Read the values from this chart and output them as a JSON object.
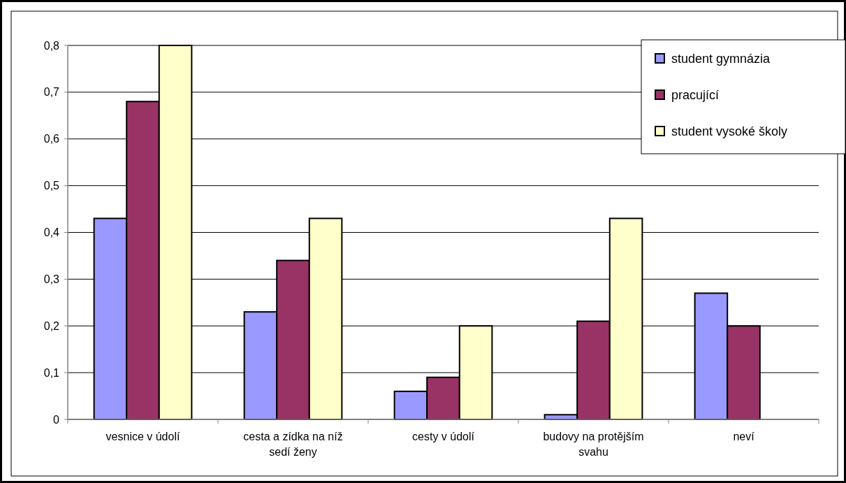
{
  "chart_data": {
    "type": "bar",
    "categories": [
      "vesnice v údolí",
      "cesta a zídka na níž sedí ženy",
      "cesty v údolí",
      "budovy na protějším svahu",
      "neví"
    ],
    "series": [
      {
        "name": "student gymnázia",
        "color": "#9999ff",
        "values": [
          0.43,
          0.23,
          0.06,
          0.01,
          0.27
        ]
      },
      {
        "name": "pracující",
        "color": "#993366",
        "values": [
          0.68,
          0.34,
          0.09,
          0.21,
          0.2
        ]
      },
      {
        "name": "student vysoké školy",
        "color": "#ffffcc",
        "values": [
          0.8,
          0.43,
          0.2,
          0.43,
          null
        ]
      }
    ],
    "ylim": [
      0,
      0.8
    ],
    "yticks": [
      {
        "value": 0,
        "label": "0"
      },
      {
        "value": 0.1,
        "label": "0,1"
      },
      {
        "value": 0.2,
        "label": "0,2"
      },
      {
        "value": 0.3,
        "label": "0,3"
      },
      {
        "value": 0.4,
        "label": "0,4"
      },
      {
        "value": 0.5,
        "label": "0,5"
      },
      {
        "value": 0.6,
        "label": "0,6"
      },
      {
        "value": 0.7,
        "label": "0,7"
      },
      {
        "value": 0.8,
        "label": "0,8"
      }
    ],
    "grid": "y",
    "legend": "top right"
  }
}
